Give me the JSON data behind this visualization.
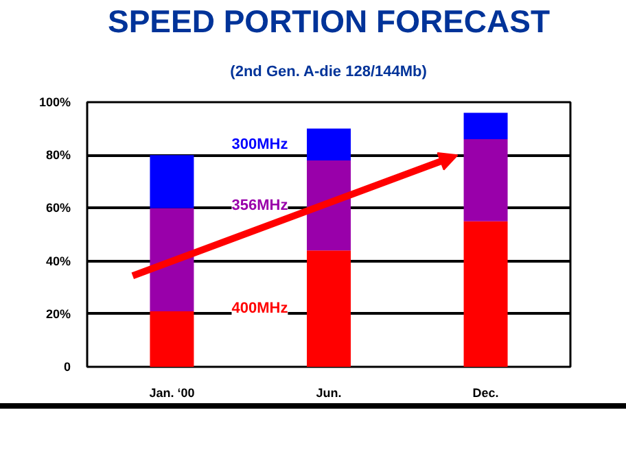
{
  "chart_data": {
    "type": "bar",
    "title": "SPEED PORTION FORECAST",
    "subtitle": "(2nd Gen. A-die 128/144Mb)",
    "categories": [
      "Jan. ‘00",
      "Jun.",
      "Dec."
    ],
    "stacked": true,
    "series": [
      {
        "name": "400MHz",
        "color": "#ff0000",
        "values": [
          21,
          44,
          55
        ]
      },
      {
        "name": "356MHz",
        "color": "#9900aa",
        "values": [
          39,
          34,
          31
        ]
      },
      {
        "name": "300MHz",
        "color": "#0000ff",
        "values": [
          20,
          12,
          10
        ]
      }
    ],
    "ylim": [
      0,
      100
    ],
    "yticks": [
      0,
      {
        "value": 20,
        "label": "20%"
      },
      {
        "value": 40,
        "label": "40%"
      },
      {
        "value": 60,
        "label": "60%"
      },
      {
        "value": 80,
        "label": "80%"
      },
      {
        "value": 100,
        "label": "100%"
      }
    ],
    "grid": "y"
  }
}
